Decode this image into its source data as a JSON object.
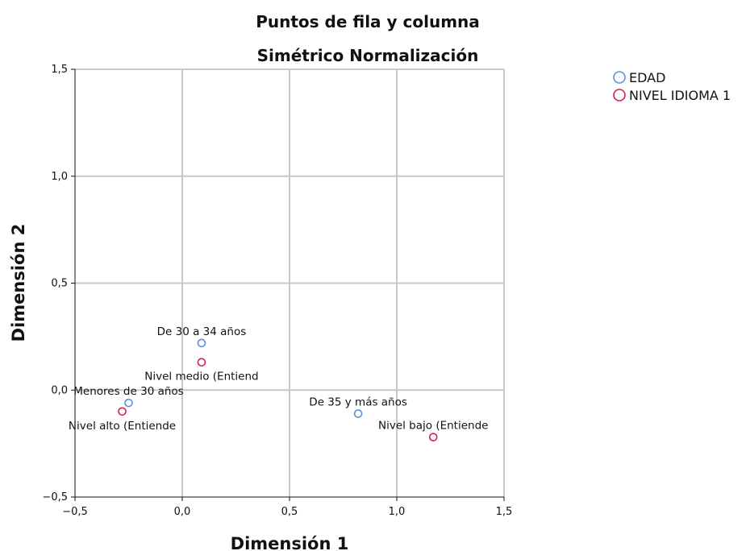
{
  "chart_data": {
    "type": "scatter",
    "title": "Puntos de fila y columna",
    "subtitle": "Simétrico Normalización",
    "xlabel": "Dimensión 1",
    "ylabel": "Dimensión 2",
    "xlim": [
      -0.5,
      1.5
    ],
    "ylim": [
      -0.5,
      1.5
    ],
    "xticks": [
      -0.5,
      0.0,
      0.5,
      1.0,
      1.5
    ],
    "yticks": [
      -0.5,
      0.0,
      0.5,
      1.0,
      1.5
    ],
    "xtick_labels": [
      "−0,5",
      "0,0",
      "0,5",
      "1,0",
      "1,5"
    ],
    "ytick_labels": [
      "−0,5",
      "0,0",
      "0,5",
      "1,0",
      "1,5"
    ],
    "grid": true,
    "legend_position": "top-right",
    "series": [
      {
        "name": "EDAD",
        "color": "#5b8fdc",
        "points": [
          {
            "label": "De 30 a 34 años",
            "x": 0.09,
            "y": 0.22,
            "label_pos": "above"
          },
          {
            "label": "Menores de 30 años",
            "x": -0.25,
            "y": -0.06,
            "label_pos": "above"
          },
          {
            "label": "De 35 y más años",
            "x": 0.82,
            "y": -0.11,
            "label_pos": "above"
          }
        ]
      },
      {
        "name": "NIVEL IDIOMA 1",
        "color": "#d6204e",
        "points": [
          {
            "label": "Nivel medio (Entiend",
            "x": 0.09,
            "y": 0.13,
            "label_pos": "below"
          },
          {
            "label": "Nivel alto (Entiende",
            "x": -0.28,
            "y": -0.1,
            "label_pos": "below"
          },
          {
            "label": "Nivel bajo (Entiende",
            "x": 1.17,
            "y": -0.22,
            "label_pos": "above"
          }
        ]
      }
    ]
  }
}
